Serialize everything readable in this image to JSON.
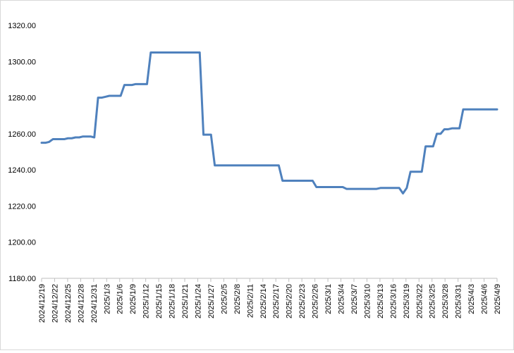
{
  "chart_data": {
    "type": "line",
    "title": "",
    "xlabel": "",
    "ylabel": "",
    "ylim": [
      1180,
      1320
    ],
    "y_ticks": [
      "1180.00",
      "1200.00",
      "1220.00",
      "1240.00",
      "1260.00",
      "1280.00",
      "1300.00",
      "1320.00"
    ],
    "x_tick_labels": [
      "2024/12/19",
      "2024/12/22",
      "2024/12/25",
      "2024/12/28",
      "2024/12/31",
      "2025/1/3",
      "2025/1/6",
      "2025/1/9",
      "2025/1/12",
      "2025/1/15",
      "2025/1/18",
      "2025/1/21",
      "2025/1/24",
      "2025/1/27",
      "2025/2/5",
      "2025/2/8",
      "2025/2/11",
      "2025/2/14",
      "2025/2/17",
      "2025/2/20",
      "2025/2/23",
      "2025/2/26",
      "2025/3/1",
      "2025/3/4",
      "2025/3/7",
      "2025/3/10",
      "2025/3/13",
      "2025/3/16",
      "2025/3/19",
      "2025/3/22",
      "2025/3/25",
      "2025/3/28",
      "2025/3/31",
      "2025/4/3",
      "2025/4/6",
      "2025/4/9"
    ],
    "grid": false,
    "legend": "none",
    "line_color": "#4f81bd",
    "series": [
      {
        "values": [
          1255,
          1255,
          1255.5,
          1257,
          1257,
          1257,
          1257,
          1257.5,
          1257.5,
          1258,
          1258,
          1258.5,
          1258.5,
          1258.5,
          1258,
          1280,
          1280,
          1280.5,
          1281,
          1281,
          1281,
          1281,
          1287,
          1287,
          1287,
          1287.5,
          1287.5,
          1287.5,
          1287.5,
          1305,
          1305,
          1305,
          1305,
          1305,
          1305,
          1305,
          1305,
          1305,
          1305,
          1305,
          1305,
          1305,
          1305,
          1259.5,
          1259.5,
          1259.5,
          1242.5,
          1242.5,
          1242.5,
          1242.5,
          1242.5,
          1242.5,
          1242.5,
          1242.5,
          1242.5,
          1242.5,
          1242.5,
          1242.5,
          1242.5,
          1242.5,
          1242.5,
          1242.5,
          1242.5,
          1242.5,
          1234,
          1234,
          1234,
          1234,
          1234,
          1234,
          1234,
          1234,
          1234,
          1230.5,
          1230.5,
          1230.5,
          1230.5,
          1230.5,
          1230.5,
          1230.5,
          1230.5,
          1229.5,
          1229.5,
          1229.5,
          1229.5,
          1229.5,
          1229.5,
          1229.5,
          1229.5,
          1229.5,
          1230,
          1230,
          1230,
          1230,
          1230,
          1230,
          1227,
          1230,
          1239,
          1239,
          1239,
          1239,
          1253,
          1253,
          1253,
          1260,
          1260,
          1262.5,
          1262.5,
          1263,
          1263,
          1263,
          1273.5,
          1273.5,
          1273.5,
          1273.5,
          1273.5,
          1273.5,
          1273.5,
          1273.5,
          1273.5,
          1273.5
        ]
      }
    ]
  }
}
